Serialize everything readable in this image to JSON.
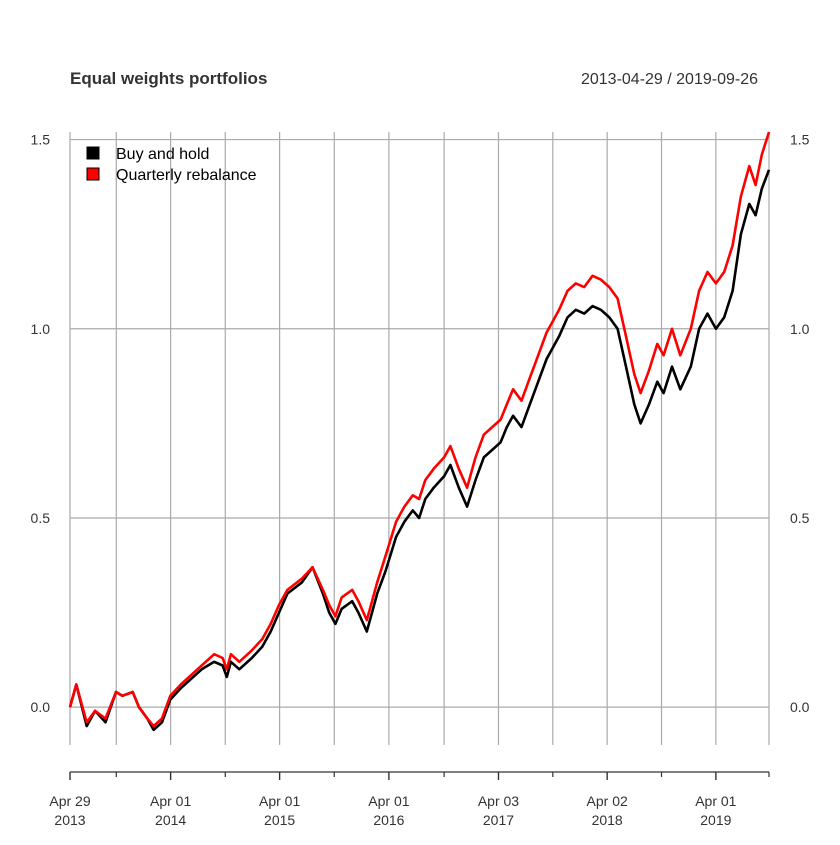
{
  "chart_data": {
    "type": "line",
    "title": "Equal weights portfolios",
    "date_range": "2013-04-29 / 2019-09-26",
    "x_start": "2013-04-29",
    "x_end": "2019-09-26",
    "ylim": [
      -0.1,
      1.52
    ],
    "y_ticks": [
      0.0,
      0.5,
      1.0,
      1.5
    ],
    "y_tick_labels": [
      "0.0",
      "0.5",
      "1.0",
      "1.5"
    ],
    "x_ticks": [
      {
        "date": "2013-04-29",
        "line1": "Apr 29",
        "line2": "2013"
      },
      {
        "date": "2014-04-01",
        "line1": "Apr 01",
        "line2": "2014"
      },
      {
        "date": "2015-04-01",
        "line1": "Apr 01",
        "line2": "2015"
      },
      {
        "date": "2016-04-01",
        "line1": "Apr 01",
        "line2": "2016"
      },
      {
        "date": "2017-04-03",
        "line1": "Apr 03",
        "line2": "2017"
      },
      {
        "date": "2018-04-02",
        "line1": "Apr 02",
        "line2": "2018"
      },
      {
        "date": "2019-04-01",
        "line1": "Apr 01",
        "line2": "2019"
      }
    ],
    "minor_ticks": [
      "2013-10-01",
      "2014-10-01",
      "2015-10-01",
      "2016-10-03",
      "2017-10-02",
      "2018-10-01",
      "2019-09-26"
    ],
    "gridlines": [
      "2013-04-29",
      "2013-10-01",
      "2014-04-01",
      "2014-10-01",
      "2015-04-01",
      "2015-10-01",
      "2016-04-01",
      "2016-10-03",
      "2017-04-03",
      "2017-10-02",
      "2018-04-02",
      "2018-10-01",
      "2019-04-01",
      "2019-09-26"
    ],
    "grid": true,
    "legend_position": "top-left",
    "series": [
      {
        "name": "Buy and hold",
        "color": "#000000",
        "points": [
          [
            "2013-04-29",
            0.0
          ],
          [
            "2013-05-20",
            0.06
          ],
          [
            "2013-06-24",
            -0.05
          ],
          [
            "2013-07-22",
            -0.01
          ],
          [
            "2013-08-26",
            -0.04
          ],
          [
            "2013-09-30",
            0.04
          ],
          [
            "2013-10-21",
            0.03
          ],
          [
            "2013-11-25",
            0.04
          ],
          [
            "2013-12-16",
            0.0
          ],
          [
            "2014-01-13",
            -0.03
          ],
          [
            "2014-02-03",
            -0.06
          ],
          [
            "2014-03-03",
            -0.04
          ],
          [
            "2014-03-31",
            0.02
          ],
          [
            "2014-05-05",
            0.05
          ],
          [
            "2014-06-16",
            0.08
          ],
          [
            "2014-07-14",
            0.1
          ],
          [
            "2014-08-25",
            0.12
          ],
          [
            "2014-09-22",
            0.11
          ],
          [
            "2014-10-06",
            0.08
          ],
          [
            "2014-10-20",
            0.12
          ],
          [
            "2014-11-17",
            0.1
          ],
          [
            "2014-12-29",
            0.13
          ],
          [
            "2015-02-02",
            0.16
          ],
          [
            "2015-03-02",
            0.2
          ],
          [
            "2015-03-30",
            0.25
          ],
          [
            "2015-04-27",
            0.3
          ],
          [
            "2015-06-15",
            0.33
          ],
          [
            "2015-07-20",
            0.37
          ],
          [
            "2015-08-24",
            0.3
          ],
          [
            "2015-09-14",
            0.25
          ],
          [
            "2015-10-05",
            0.22
          ],
          [
            "2015-10-26",
            0.26
          ],
          [
            "2015-11-30",
            0.28
          ],
          [
            "2015-12-21",
            0.25
          ],
          [
            "2016-01-18",
            0.2
          ],
          [
            "2016-02-01",
            0.24
          ],
          [
            "2016-02-22",
            0.3
          ],
          [
            "2016-03-21",
            0.36
          ],
          [
            "2016-04-25",
            0.45
          ],
          [
            "2016-05-23",
            0.49
          ],
          [
            "2016-06-20",
            0.52
          ],
          [
            "2016-07-11",
            0.5
          ],
          [
            "2016-08-01",
            0.55
          ],
          [
            "2016-08-29",
            0.58
          ],
          [
            "2016-10-03",
            0.61
          ],
          [
            "2016-10-24",
            0.64
          ],
          [
            "2016-11-21",
            0.58
          ],
          [
            "2016-12-19",
            0.53
          ],
          [
            "2017-01-16",
            0.6
          ],
          [
            "2017-02-13",
            0.66
          ],
          [
            "2017-03-13",
            0.68
          ],
          [
            "2017-04-10",
            0.7
          ],
          [
            "2017-05-01",
            0.74
          ],
          [
            "2017-05-22",
            0.77
          ],
          [
            "2017-06-19",
            0.74
          ],
          [
            "2017-07-17",
            0.8
          ],
          [
            "2017-08-14",
            0.86
          ],
          [
            "2017-09-11",
            0.92
          ],
          [
            "2017-10-02",
            0.95
          ],
          [
            "2017-10-23",
            0.98
          ],
          [
            "2017-11-20",
            1.03
          ],
          [
            "2017-12-18",
            1.05
          ],
          [
            "2018-01-15",
            1.04
          ],
          [
            "2018-02-12",
            1.06
          ],
          [
            "2018-03-12",
            1.05
          ],
          [
            "2018-04-09",
            1.03
          ],
          [
            "2018-05-07",
            1.0
          ],
          [
            "2018-06-04",
            0.9
          ],
          [
            "2018-07-02",
            0.8
          ],
          [
            "2018-07-23",
            0.75
          ],
          [
            "2018-08-20",
            0.8
          ],
          [
            "2018-09-17",
            0.86
          ],
          [
            "2018-10-08",
            0.83
          ],
          [
            "2018-11-05",
            0.9
          ],
          [
            "2018-12-03",
            0.84
          ],
          [
            "2019-01-07",
            0.9
          ],
          [
            "2019-02-04",
            1.0
          ],
          [
            "2019-03-04",
            1.04
          ],
          [
            "2019-04-01",
            1.0
          ],
          [
            "2019-04-29",
            1.03
          ],
          [
            "2019-05-27",
            1.1
          ],
          [
            "2019-06-24",
            1.25
          ],
          [
            "2019-07-22",
            1.33
          ],
          [
            "2019-08-12",
            1.3
          ],
          [
            "2019-09-02",
            1.37
          ],
          [
            "2019-09-26",
            1.42
          ]
        ]
      },
      {
        "name": "Quarterly rebalance",
        "color": "#ff0000",
        "points": [
          [
            "2013-04-29",
            0.0
          ],
          [
            "2013-05-20",
            0.06
          ],
          [
            "2013-06-24",
            -0.04
          ],
          [
            "2013-07-22",
            -0.01
          ],
          [
            "2013-08-26",
            -0.03
          ],
          [
            "2013-09-30",
            0.04
          ],
          [
            "2013-10-21",
            0.03
          ],
          [
            "2013-11-25",
            0.04
          ],
          [
            "2013-12-16",
            0.0
          ],
          [
            "2014-01-13",
            -0.03
          ],
          [
            "2014-02-03",
            -0.05
          ],
          [
            "2014-03-03",
            -0.03
          ],
          [
            "2014-03-31",
            0.03
          ],
          [
            "2014-05-05",
            0.06
          ],
          [
            "2014-06-16",
            0.09
          ],
          [
            "2014-07-14",
            0.11
          ],
          [
            "2014-08-25",
            0.14
          ],
          [
            "2014-09-22",
            0.13
          ],
          [
            "2014-10-06",
            0.1
          ],
          [
            "2014-10-20",
            0.14
          ],
          [
            "2014-11-17",
            0.12
          ],
          [
            "2014-12-29",
            0.15
          ],
          [
            "2015-02-02",
            0.18
          ],
          [
            "2015-03-02",
            0.22
          ],
          [
            "2015-03-30",
            0.27
          ],
          [
            "2015-04-27",
            0.31
          ],
          [
            "2015-06-15",
            0.34
          ],
          [
            "2015-07-20",
            0.37
          ],
          [
            "2015-08-24",
            0.31
          ],
          [
            "2015-09-14",
            0.27
          ],
          [
            "2015-10-05",
            0.24
          ],
          [
            "2015-10-26",
            0.29
          ],
          [
            "2015-11-30",
            0.31
          ],
          [
            "2015-12-21",
            0.28
          ],
          [
            "2016-01-18",
            0.23
          ],
          [
            "2016-02-01",
            0.27
          ],
          [
            "2016-02-22",
            0.33
          ],
          [
            "2016-03-21",
            0.4
          ],
          [
            "2016-04-25",
            0.49
          ],
          [
            "2016-05-23",
            0.53
          ],
          [
            "2016-06-20",
            0.56
          ],
          [
            "2016-07-11",
            0.55
          ],
          [
            "2016-08-01",
            0.6
          ],
          [
            "2016-08-29",
            0.63
          ],
          [
            "2016-10-03",
            0.66
          ],
          [
            "2016-10-24",
            0.69
          ],
          [
            "2016-11-21",
            0.63
          ],
          [
            "2016-12-19",
            0.58
          ],
          [
            "2017-01-16",
            0.66
          ],
          [
            "2017-02-13",
            0.72
          ],
          [
            "2017-03-13",
            0.74
          ],
          [
            "2017-04-10",
            0.76
          ],
          [
            "2017-05-01",
            0.8
          ],
          [
            "2017-05-22",
            0.84
          ],
          [
            "2017-06-19",
            0.81
          ],
          [
            "2017-07-17",
            0.87
          ],
          [
            "2017-08-14",
            0.93
          ],
          [
            "2017-09-11",
            0.99
          ],
          [
            "2017-10-02",
            1.02
          ],
          [
            "2017-10-23",
            1.05
          ],
          [
            "2017-11-20",
            1.1
          ],
          [
            "2017-12-18",
            1.12
          ],
          [
            "2018-01-15",
            1.11
          ],
          [
            "2018-02-12",
            1.14
          ],
          [
            "2018-03-12",
            1.13
          ],
          [
            "2018-04-09",
            1.11
          ],
          [
            "2018-05-07",
            1.08
          ],
          [
            "2018-06-04",
            0.98
          ],
          [
            "2018-07-02",
            0.88
          ],
          [
            "2018-07-23",
            0.83
          ],
          [
            "2018-08-20",
            0.89
          ],
          [
            "2018-09-17",
            0.96
          ],
          [
            "2018-10-08",
            0.93
          ],
          [
            "2018-11-05",
            1.0
          ],
          [
            "2018-12-03",
            0.93
          ],
          [
            "2019-01-07",
            1.0
          ],
          [
            "2019-02-04",
            1.1
          ],
          [
            "2019-03-04",
            1.15
          ],
          [
            "2019-04-01",
            1.12
          ],
          [
            "2019-04-29",
            1.15
          ],
          [
            "2019-05-27",
            1.22
          ],
          [
            "2019-06-24",
            1.35
          ],
          [
            "2019-07-22",
            1.43
          ],
          [
            "2019-08-12",
            1.38
          ],
          [
            "2019-09-02",
            1.46
          ],
          [
            "2019-09-26",
            1.52
          ]
        ]
      }
    ]
  }
}
